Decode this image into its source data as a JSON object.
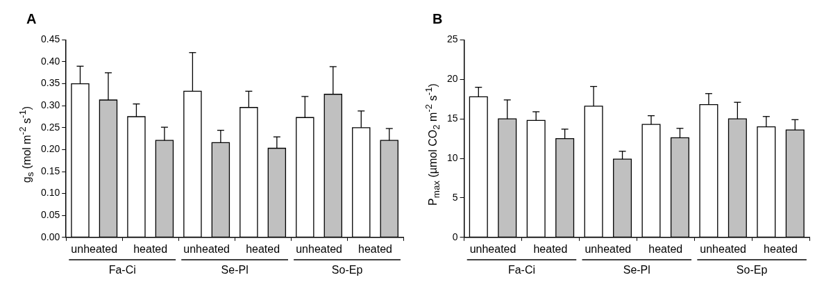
{
  "chart_data": [
    {
      "type": "bar",
      "title": "A",
      "ylabel": "g$_{s}$ (mol m$^{-2}$ s$^{-1}$)",
      "categories": [
        "unheated",
        "heated",
        "unheated",
        "heated",
        "unheated",
        "heated"
      ],
      "series": [
        {
          "color": "#ffffff",
          "values": [
            0.35,
            0.275,
            0.333,
            0.296,
            0.273,
            0.25
          ],
          "errors": [
            [
              0.35,
              0.39
            ],
            [
              0.275,
              0.304
            ],
            [
              0.333,
              0.421
            ],
            [
              0.296,
              0.333
            ],
            [
              0.273,
              0.321
            ],
            [
              0.25,
              0.288
            ]
          ]
        },
        {
          "color": "#c0c0c0",
          "values": [
            0.313,
            0.221,
            0.216,
            0.203,
            0.326,
            0.221
          ],
          "errors": [
            [
              0.313,
              0.375
            ],
            [
              0.221,
              0.251
            ],
            [
              0.216,
              0.244
            ],
            [
              0.203,
              0.229
            ],
            [
              0.326,
              0.389
            ],
            [
              0.221,
              0.248
            ]
          ]
        }
      ],
      "ylim": [
        0,
        0.45
      ],
      "yticks": [
        {
          "value": 0,
          "label": "0.00"
        },
        {
          "value": 0.05,
          "label": "0.05"
        },
        {
          "value": 0.1,
          "label": "0.10"
        },
        {
          "value": 0.15,
          "label": "0.15"
        },
        {
          "value": 0.2,
          "label": "0.20"
        },
        {
          "value": 0.25,
          "label": "0.25"
        },
        {
          "value": 0.3,
          "label": "0.30"
        },
        {
          "value": 0.35,
          "label": "0.35"
        },
        {
          "value": 0.4,
          "label": "0.40"
        },
        {
          "value": 0.45,
          "label": "0.45"
        }
      ],
      "annotations": [
        "Fa-Ci",
        "Se-Pl",
        "So-Ep"
      ],
      "grid": false,
      "legend": false
    },
    {
      "type": "bar",
      "title": "B",
      "ylabel": "P$_{max}$ (µmol CO$_{2}$ m$^{-2}$ s$^{-1}$)",
      "categories": [
        "unheated",
        "heated",
        "unheated",
        "heated",
        "unheated",
        "heated"
      ],
      "series": [
        {
          "color": "#ffffff",
          "values": [
            17.8,
            14.8,
            16.6,
            14.3,
            16.8,
            14.0
          ],
          "errors": [
            [
              17.8,
              19.0
            ],
            [
              14.8,
              15.9
            ],
            [
              16.6,
              19.1
            ],
            [
              14.3,
              15.4
            ],
            [
              16.8,
              18.2
            ],
            [
              14.0,
              15.3
            ]
          ]
        },
        {
          "color": "#c0c0c0",
          "values": [
            15.0,
            12.5,
            9.9,
            12.6,
            15.0,
            13.6
          ],
          "errors": [
            [
              15.0,
              17.4
            ],
            [
              12.5,
              13.7
            ],
            [
              9.9,
              10.9
            ],
            [
              12.6,
              13.8
            ],
            [
              15.0,
              17.1
            ],
            [
              13.6,
              14.9
            ]
          ]
        }
      ],
      "ylim": [
        0,
        25
      ],
      "yticks": [
        0,
        5,
        10,
        15,
        20,
        25
      ],
      "annotations": [
        "Fa-Ci",
        "Se-Pl",
        "So-Ep"
      ],
      "grid": false,
      "legend": false
    }
  ]
}
